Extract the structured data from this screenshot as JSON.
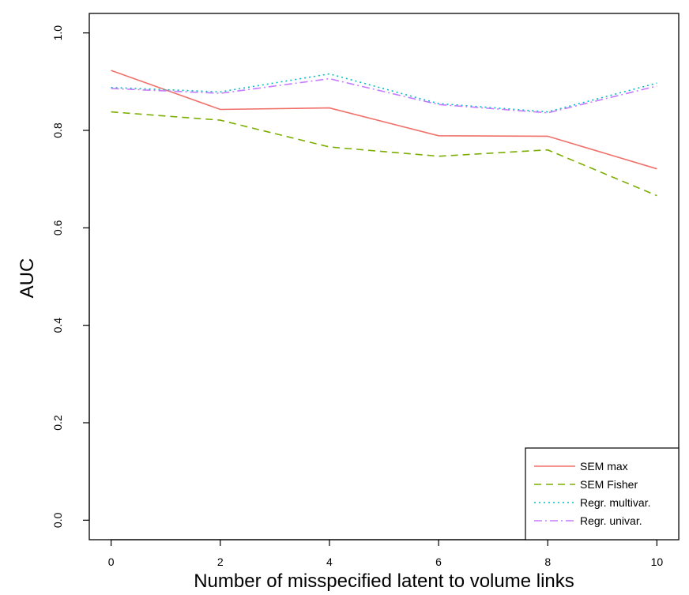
{
  "chart_data": {
    "type": "line",
    "xlabel": "Number of misspecified latent to volume links",
    "ylabel": "AUC",
    "x": [
      0,
      2,
      4,
      6,
      8,
      10
    ],
    "xticks": [
      "0",
      "2",
      "4",
      "6",
      "8",
      "10"
    ],
    "yticks": [
      "0.0",
      "0.2",
      "0.4",
      "0.6",
      "0.8",
      "1.0"
    ],
    "xlim": [
      -0.4,
      10.4
    ],
    "ylim": [
      -0.04,
      1.04
    ],
    "grid": false,
    "legend_position": "bottom-right",
    "series": [
      {
        "name": "SEM max",
        "values": [
          0.923,
          0.843,
          0.846,
          0.789,
          0.788,
          0.721
        ],
        "color": "#f0706a",
        "dash": ""
      },
      {
        "name": "SEM Fisher",
        "values": [
          0.838,
          0.821,
          0.766,
          0.747,
          0.76,
          0.666
        ],
        "color": "#7cae00",
        "dash": "9,6"
      },
      {
        "name": "Regr. multivar.",
        "values": [
          0.888,
          0.879,
          0.916,
          0.855,
          0.838,
          0.897
        ],
        "color": "#00bfc4",
        "dash": "2,4"
      },
      {
        "name": "Regr. univar.",
        "values": [
          0.886,
          0.876,
          0.906,
          0.853,
          0.836,
          0.891
        ],
        "color": "#c77cff",
        "dash": "10,4,2,4"
      }
    ]
  }
}
